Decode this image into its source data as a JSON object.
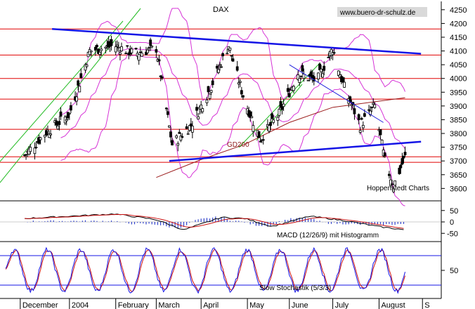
{
  "chart_data": [
    {
      "type": "line",
      "title": "DAX",
      "subtitle": "",
      "source": "www.buero-dr-schulz.de",
      "credit": "Hoppenstedt Charts",
      "xlabel": "",
      "ylabel": "",
      "ylim": [
        3560,
        4270
      ],
      "y_ticks": [
        3600,
        3650,
        3700,
        3750,
        3800,
        3850,
        3900,
        3950,
        4000,
        4050,
        4100,
        4150,
        4200,
        4250
      ],
      "x_ticks": [
        "December",
        "2004",
        "February",
        "March",
        "April",
        "May",
        "June",
        "July",
        "August",
        "S"
      ],
      "grid": false,
      "series_label": "GD200",
      "horizontal_levels": [
        4180,
        4085,
        4000,
        3925,
        3815,
        3715,
        3695
      ],
      "trendlines": [
        {
          "from": [
            "2003-12-20",
            4180
          ],
          "to": [
            "2004-08-31",
            4090
          ]
        },
        {
          "from": [
            "2004-03-10",
            3700
          ],
          "to": [
            "2004-08-31",
            3770
          ]
        },
        {
          "from": [
            "2004-06-01",
            4050
          ],
          "to": [
            "2004-08-05",
            3840
          ]
        }
      ],
      "price_close": [
        [
          "2003-12-01",
          3720
        ],
        [
          "2003-12-15",
          3800
        ],
        [
          "2004-01-01",
          3870
        ],
        [
          "2004-01-15",
          4100
        ],
        [
          "2004-02-01",
          4120
        ],
        [
          "2004-02-15",
          4090
        ],
        [
          "2004-03-01",
          4110
        ],
        [
          "2004-03-12",
          3760
        ],
        [
          "2004-03-25",
          3830
        ],
        [
          "2004-04-07",
          3960
        ],
        [
          "2004-04-20",
          4120
        ],
        [
          "2004-05-01",
          3920
        ],
        [
          "2004-05-12",
          3780
        ],
        [
          "2004-05-25",
          3870
        ],
        [
          "2004-06-07",
          4020
        ],
        [
          "2004-06-20",
          3990
        ],
        [
          "2004-07-01",
          4110
        ],
        [
          "2004-07-08",
          3980
        ],
        [
          "2004-07-20",
          3830
        ],
        [
          "2004-07-30",
          3900
        ],
        [
          "2004-08-06",
          3700
        ],
        [
          "2004-08-12",
          3610
        ],
        [
          "2004-08-20",
          3715
        ]
      ],
      "gd200": [
        [
          "2004-03-01",
          3640
        ],
        [
          "2004-04-01",
          3705
        ],
        [
          "2004-05-01",
          3760
        ],
        [
          "2004-06-01",
          3840
        ],
        [
          "2004-07-01",
          3895
        ],
        [
          "2004-08-20",
          3930
        ]
      ]
    },
    {
      "type": "line",
      "title": "MACD (12/26/9) mit Histogramm",
      "ylim": [
        -80,
        80
      ],
      "y_ticks": [
        50,
        0,
        -50
      ],
      "series": [
        {
          "name": "MACD",
          "values": [
            [
              "2003-12-01",
              15
            ],
            [
              "2004-01-01",
              25
            ],
            [
              "2004-02-01",
              35
            ],
            [
              "2004-03-01",
              10
            ],
            [
              "2004-03-20",
              -35
            ],
            [
              "2004-04-15",
              20
            ],
            [
              "2004-05-01",
              15
            ],
            [
              "2004-05-20",
              -20
            ],
            [
              "2004-06-15",
              25
            ],
            [
              "2004-07-10",
              5
            ],
            [
              "2004-08-01",
              -20
            ],
            [
              "2004-08-20",
              -35
            ]
          ]
        }
      ]
    },
    {
      "type": "line",
      "title": "Slow Stochastik (5/3/3)",
      "ylim": [
        0,
        100
      ],
      "y_ticks": [
        50
      ],
      "levels": [
        80,
        20
      ]
    }
  ]
}
